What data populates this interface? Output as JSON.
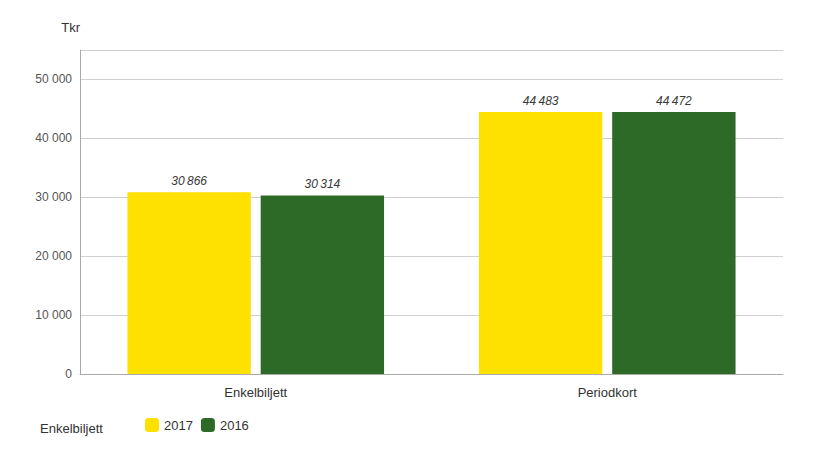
{
  "chart_data": {
    "type": "bar",
    "y_label": "Tkr",
    "categories": [
      "Enkelbiljett",
      "Periodkort"
    ],
    "series": [
      {
        "name": "2017",
        "color": "#FFE100",
        "values": [
          30866,
          44483
        ],
        "value_labels": [
          "30 866",
          "44 483"
        ]
      },
      {
        "name": "2016",
        "color": "#2D6A27",
        "values": [
          30314,
          44472
        ],
        "value_labels": [
          "30 314",
          "44 472"
        ]
      }
    ],
    "ylim": [
      0,
      55000
    ],
    "yticks": [
      0,
      {
        "value": 10000,
        "label": "10 000"
      },
      {
        "value": 20000,
        "label": "20 000"
      },
      {
        "value": 30000,
        "label": "30 000"
      },
      {
        "value": 40000,
        "label": "40 000"
      },
      {
        "value": 50000,
        "label": "50 000"
      }
    ],
    "grid": true,
    "legend": "bottom",
    "data_labels": true,
    "annotations": [
      "Enkelbiljett"
    ]
  }
}
